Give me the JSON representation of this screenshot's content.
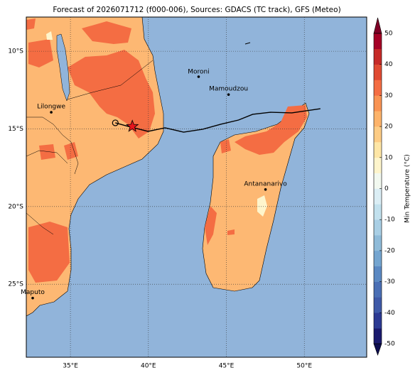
{
  "map": {
    "title": "Forecast of 2026071712 (f000-006), Sources: GDACS (TC track), GFS (Meteo)",
    "xlim": [
      32.17,
      54.0
    ],
    "ylim": [
      -29.7,
      -7.8
    ],
    "xticks": [
      {
        "value": 35,
        "label": "35°E"
      },
      {
        "value": 40,
        "label": "40°E"
      },
      {
        "value": 45,
        "label": "45°E"
      },
      {
        "value": 50,
        "label": "50°E"
      }
    ],
    "yticks": [
      {
        "value": -10,
        "label": "10°S"
      },
      {
        "value": -15,
        "label": "15°S"
      },
      {
        "value": -20,
        "label": "20°S"
      },
      {
        "value": -25,
        "label": "25°S"
      }
    ],
    "grid": true,
    "cities": [
      {
        "name": "Moroni",
        "lon": 43.22,
        "lat": -11.64
      },
      {
        "name": "Mamoudzou",
        "lon": 45.14,
        "lat": -12.79
      },
      {
        "name": "Lilongwe",
        "lon": 33.77,
        "lat": -13.93
      },
      {
        "name": "Antananarivo",
        "lon": 47.51,
        "lat": -18.9
      },
      {
        "name": "Maputo",
        "lon": 32.58,
        "lat": -25.89
      }
    ],
    "track": {
      "lon": [
        37.88,
        38.7,
        39.98,
        41.07,
        42.26,
        43.49,
        44.64,
        45.78,
        46.69,
        47.83,
        49.2,
        51.03
      ],
      "lat": [
        -14.61,
        -14.84,
        -15.16,
        -14.93,
        -15.21,
        -15.02,
        -14.7,
        -14.43,
        -14.06,
        -13.93,
        -13.97,
        -13.7
      ],
      "color": "#000000"
    },
    "storm": {
      "lon": 38.97,
      "lat": -14.84,
      "color": "#e8141c"
    },
    "colorbar": {
      "label": "Min Temperature (°C)",
      "lim": [
        -50,
        50
      ],
      "ticks": [
        -50,
        -40,
        -30,
        -20,
        -10,
        0,
        10,
        20,
        30,
        40,
        50
      ],
      "colors": [
        "#1a1a6e",
        "#2c3a93",
        "#3f5aa8",
        "#4a6fb5",
        "#5b89c3",
        "#74a5d0",
        "#8fbbd9",
        "#a9cfe5",
        "#c2e1ee",
        "#dbeef5",
        "#f2f9f0",
        "#fef5cc",
        "#fee6a6",
        "#fdcc85",
        "#fdb36a",
        "#f99353",
        "#f46d43",
        "#e04a32",
        "#c62a28",
        "#a50026"
      ]
    }
  }
}
